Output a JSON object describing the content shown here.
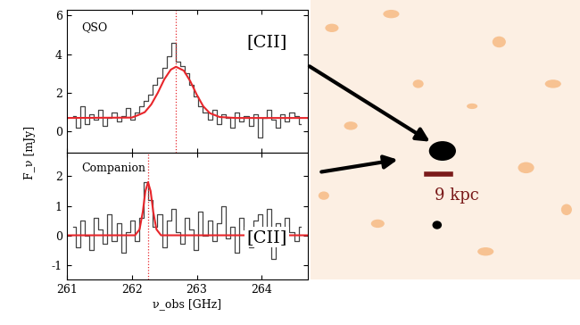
{
  "chart_data": [
    {
      "type": "line",
      "title": "QSO",
      "annotation": "[CII]",
      "xlim": [
        261,
        264.7
      ],
      "xticks": [
        261,
        262,
        263,
        264
      ],
      "ylim": [
        -1.1,
        6.3
      ],
      "yticks": [
        0,
        2,
        4,
        6
      ],
      "tick_labels": "y",
      "reference_x": 262.68,
      "reference_color": "#e8262b",
      "series": [
        {
          "type": "step",
          "color": "#444444",
          "x": [
            261.1,
            261.17,
            261.24,
            261.31,
            261.38,
            261.45,
            261.52,
            261.59,
            261.66,
            261.73,
            261.8,
            261.87,
            261.94,
            262.01,
            262.08,
            262.15,
            262.22,
            262.29,
            262.36,
            262.43,
            262.5,
            262.57,
            262.64,
            262.71,
            262.78,
            262.85,
            262.92,
            262.99,
            263.06,
            263.13,
            263.2,
            263.27,
            263.34,
            263.41,
            263.48,
            263.55,
            263.62,
            263.69,
            263.76,
            263.83,
            263.9,
            263.97,
            264.04,
            264.11,
            264.18,
            264.25,
            264.32,
            264.39,
            264.46,
            264.53,
            264.6
          ],
          "values": [
            0.8,
            0.2,
            1.3,
            0.4,
            0.9,
            0.6,
            1.1,
            0.3,
            0.7,
            1.0,
            0.5,
            0.8,
            1.2,
            0.6,
            1.0,
            1.3,
            1.6,
            1.9,
            2.4,
            2.8,
            3.3,
            3.9,
            4.6,
            3.6,
            3.4,
            3.0,
            2.4,
            1.8,
            1.3,
            1.0,
            0.6,
            1.1,
            0.4,
            0.9,
            0.7,
            0.2,
            1.0,
            0.5,
            0.8,
            0.3,
            0.9,
            -0.3,
            0.7,
            1.1,
            0.6,
            0.2,
            0.9,
            0.5,
            1.0,
            0.8,
            0.4
          ]
        },
        {
          "type": "line",
          "color": "#e8262b",
          "x": [
            261.0,
            262.0,
            262.1,
            262.2,
            262.3,
            262.4,
            262.5,
            262.6,
            262.68,
            262.8,
            262.9,
            263.0,
            263.1,
            263.2,
            263.35,
            263.6,
            264.7
          ],
          "values": [
            0.7,
            0.72,
            0.85,
            1.0,
            1.4,
            2.0,
            2.7,
            3.2,
            3.35,
            3.15,
            2.6,
            1.9,
            1.3,
            0.95,
            0.75,
            0.7,
            0.7
          ]
        }
      ]
    },
    {
      "type": "line",
      "title": "Companion",
      "annotation": "[CII]",
      "x_label": "ν_obs [GHz]",
      "y_label": "F_ν [mJy]",
      "xlim": [
        261,
        264.7
      ],
      "xticks": [
        261,
        262,
        263,
        264
      ],
      "ylim": [
        -1.5,
        2.8
      ],
      "yticks": [
        -1,
        0,
        1,
        2
      ],
      "reference_x": 262.25,
      "reference_color": "#e8262b",
      "series": [
        {
          "type": "step",
          "color": "#444444",
          "x": [
            261.1,
            261.17,
            261.24,
            261.31,
            261.38,
            261.45,
            261.52,
            261.59,
            261.66,
            261.73,
            261.8,
            261.87,
            261.94,
            262.01,
            262.08,
            262.15,
            262.22,
            262.29,
            262.36,
            262.43,
            262.5,
            262.57,
            262.64,
            262.71,
            262.78,
            262.85,
            262.92,
            262.99,
            263.06,
            263.13,
            263.2,
            263.27,
            263.34,
            263.41,
            263.48,
            263.55,
            263.62,
            263.69,
            263.76,
            263.83,
            263.9,
            263.97,
            264.04,
            264.11,
            264.18,
            264.25,
            264.32,
            264.39,
            264.46,
            264.53,
            264.6
          ],
          "values": [
            0.3,
            -0.4,
            0.5,
            0.0,
            -0.5,
            0.6,
            0.2,
            -0.3,
            0.7,
            -0.2,
            0.4,
            -0.6,
            0.1,
            0.5,
            -0.2,
            0.6,
            1.8,
            1.2,
            0.3,
            0.7,
            -0.4,
            0.5,
            0.9,
            0.1,
            -0.3,
            0.6,
            0.2,
            -0.5,
            0.8,
            0.0,
            0.5,
            -0.2,
            0.4,
            1.0,
            -0.1,
            0.3,
            -0.6,
            0.6,
            0.2,
            -0.4,
            0.5,
            0.7,
            0.0,
            0.9,
            -0.8,
            0.4,
            -0.3,
            0.6,
            0.1,
            -0.2,
            0.3
          ]
        },
        {
          "type": "line",
          "color": "#e8262b",
          "x": [
            261.0,
            262.05,
            262.12,
            262.17,
            262.21,
            262.25,
            262.29,
            262.33,
            262.38,
            262.45,
            264.7
          ],
          "values": [
            0,
            0,
            0.2,
            0.8,
            1.5,
            1.8,
            1.5,
            0.8,
            0.2,
            0,
            0
          ]
        }
      ]
    }
  ],
  "image": {
    "scale_bar_label": "9 kpc"
  }
}
